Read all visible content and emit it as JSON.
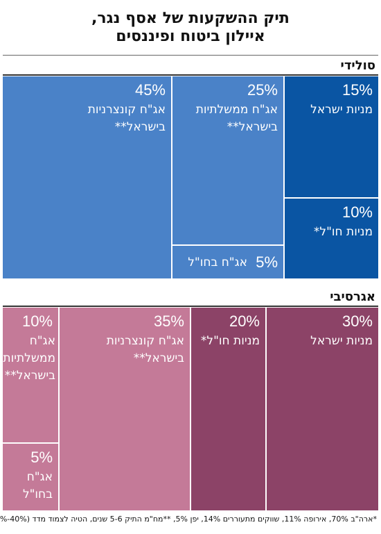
{
  "title_line1": "תיק ההשקעות של אסף נגר,",
  "title_line2": "איילון ביטוח ופיננסים",
  "footnote": "*ארה\"ב 70%, אירופה 11%, שווקים מתעוררים 14%, יפן 5%, **מח\"מ התיק 5-6 שנים, הטיה לצמוד מדד (40%-60%)",
  "colors": {
    "solid_light": "#4a82c8",
    "solid_dark": "#0a55a3",
    "aggr_light": "#c47a98",
    "aggr_dark": "#8c4367"
  },
  "chart_data": [
    {
      "type": "treemap",
      "title": "סולידי",
      "items": [
        {
          "value": 45,
          "label": "45%",
          "name": "אג\"ח קונצרניות בישראל**",
          "shade": "light"
        },
        {
          "value": 25,
          "label": "25%",
          "name": "אג\"ח ממשלתיות בישראל**",
          "shade": "light"
        },
        {
          "value": 5,
          "label": "5%",
          "name": "אג\"ח בחו\"ל",
          "shade": "light"
        },
        {
          "value": 15,
          "label": "15%",
          "name": "מניות ישראל",
          "shade": "dark"
        },
        {
          "value": 10,
          "label": "10%",
          "name": "מניות חו\"ל*",
          "shade": "dark"
        }
      ]
    },
    {
      "type": "treemap",
      "title": "אגרסיבי",
      "items": [
        {
          "value": 10,
          "label": "10%",
          "name": "אג\"ח ממשלתיות בישראל**",
          "shade": "light"
        },
        {
          "value": 5,
          "label": "5%",
          "name": "אג\"ח בחו\"ל",
          "shade": "light"
        },
        {
          "value": 35,
          "label": "35%",
          "name": "אג\"ח קונצרניות בישראל**",
          "shade": "light"
        },
        {
          "value": 20,
          "label": "20%",
          "name": "מניות חו\"ל*",
          "shade": "dark"
        },
        {
          "value": 30,
          "label": "30%",
          "name": "מניות ישראל",
          "shade": "dark"
        }
      ]
    }
  ]
}
